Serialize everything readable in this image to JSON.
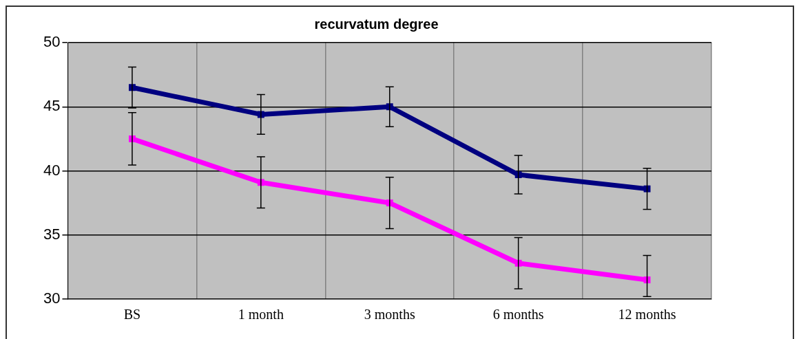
{
  "chart_data": {
    "type": "line",
    "title": "recurvatum degree",
    "categories": [
      "BS",
      "1 month",
      "3 months",
      "6 months",
      "12 months"
    ],
    "series": [
      {
        "color": "#000080",
        "values": [
          46.5,
          44.4,
          45.0,
          39.7,
          38.6
        ],
        "errors": [
          1.6,
          1.55,
          1.55,
          1.5,
          1.6
        ]
      },
      {
        "color": "#ff00ff",
        "values": [
          42.5,
          39.1,
          37.5,
          32.8,
          31.5
        ],
        "errors": [
          2.05,
          2.0,
          2.0,
          2.0,
          [
            30.2,
            33.4
          ]
        ]
      }
    ],
    "ylim": [
      30,
      50
    ],
    "yticks": [
      30,
      35,
      40,
      45,
      50
    ],
    "grid": true,
    "legend": false,
    "marker": "square",
    "line_style": "solid"
  }
}
